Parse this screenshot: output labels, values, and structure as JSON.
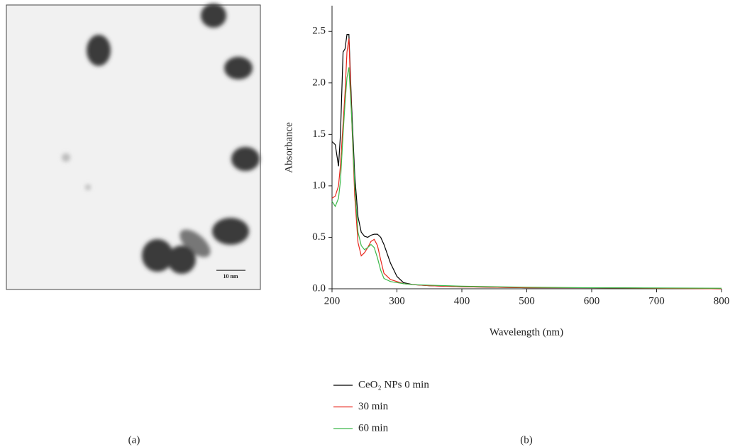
{
  "image": {
    "scale_bar_label": "10 nm"
  },
  "panel_labels": [
    "(a)",
    "(b)"
  ],
  "chart_data": {
    "type": "line",
    "x_label": "Wavelength (nm)",
    "y_label": "Absorbance",
    "x": [
      200,
      205,
      210,
      213,
      217,
      220,
      223,
      226,
      230,
      235,
      240,
      245,
      250,
      255,
      260,
      265,
      270,
      275,
      280,
      290,
      300,
      310,
      325,
      350,
      400,
      500,
      600,
      700,
      800
    ],
    "series": [
      {
        "name": "CeO₂ NPs 0 min",
        "color": "#000000",
        "values": [
          1.43,
          1.4,
          1.19,
          1.5,
          2.3,
          2.33,
          2.47,
          2.47,
          1.8,
          1.1,
          0.7,
          0.55,
          0.51,
          0.5,
          0.52,
          0.53,
          0.53,
          0.5,
          0.43,
          0.25,
          0.12,
          0.06,
          0.04,
          0.03,
          0.02,
          0.01,
          0.01,
          0.005,
          0
        ]
      },
      {
        "name": "30 min",
        "color": "#e8261c",
        "values": [
          0.88,
          0.9,
          1.0,
          1.2,
          1.6,
          1.9,
          2.3,
          2.43,
          1.7,
          0.9,
          0.45,
          0.32,
          0.35,
          0.4,
          0.46,
          0.48,
          0.42,
          0.28,
          0.15,
          0.09,
          0.07,
          0.05,
          0.04,
          0.03,
          0.02,
          0.01,
          0.01,
          0.005,
          0
        ]
      },
      {
        "name": "60 min",
        "color": "#3cb84a",
        "values": [
          0.85,
          0.8,
          0.88,
          1.05,
          1.5,
          1.8,
          2.05,
          2.15,
          1.7,
          1.0,
          0.55,
          0.42,
          0.38,
          0.4,
          0.43,
          0.4,
          0.3,
          0.18,
          0.1,
          0.07,
          0.06,
          0.05,
          0.04,
          0.035,
          0.025,
          0.015,
          0.01,
          0.008,
          0.005
        ]
      }
    ],
    "xlim": [
      200,
      800
    ],
    "xticks": [
      200,
      300,
      400,
      500,
      600,
      700,
      800
    ],
    "ylim": [
      0,
      2.75
    ],
    "yticks": [
      {
        "value": 0,
        "label": "0.0"
      },
      0.5,
      {
        "value": 1,
        "label": "1.0"
      },
      1.5,
      {
        "value": 2,
        "label": "2.0"
      },
      2.5
    ]
  }
}
